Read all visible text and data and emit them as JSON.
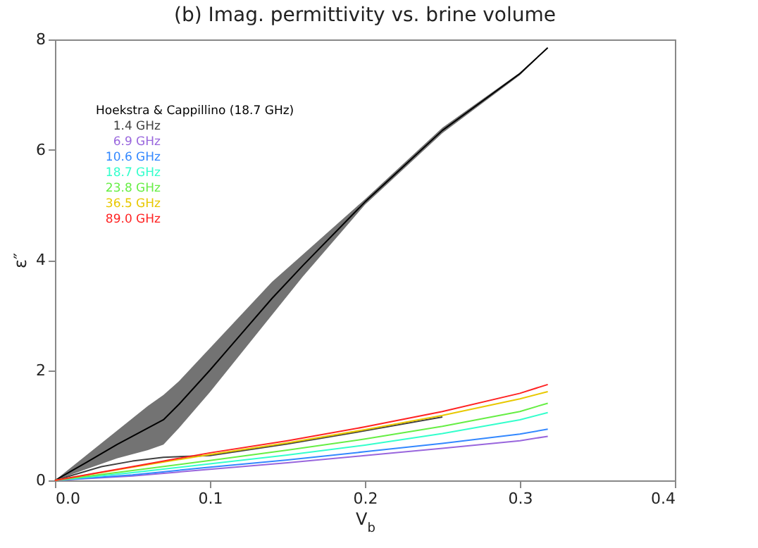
{
  "chart_data": {
    "type": "line",
    "title": "(b) Imag. permittivity vs. brine volume",
    "xlabel": "V$_{b}$",
    "ylabel": "ε″",
    "xlim": [
      0,
      0.4
    ],
    "xticks": [
      {
        "value": 0,
        "label": "0.0"
      },
      {
        "value": 0.1,
        "label": "0.1"
      },
      {
        "value": 0.2,
        "label": "0.2"
      },
      {
        "value": 0.3,
        "label": "0.3"
      },
      {
        "value": 0.4,
        "label": "0.4"
      }
    ],
    "ylim": [
      0,
      8
    ],
    "yticks": [
      0,
      2,
      4,
      6,
      8
    ],
    "grid": false,
    "marker": "none",
    "line_style": "solid",
    "series": [
      {
        "name": "Hoekstra & Cappillino (18.7 GHz)",
        "color": "#000000",
        "x": [
          0,
          0.02,
          0.04,
          0.06,
          0.07,
          0.08,
          0.1,
          0.12,
          0.14,
          0.16,
          0.2,
          0.25,
          0.3,
          0.318
        ],
        "values": [
          0,
          0.32,
          0.65,
          0.95,
          1.1,
          1.38,
          2.0,
          2.65,
          3.3,
          3.9,
          5.05,
          6.35,
          7.38,
          7.85
        ],
        "lower": [
          0,
          0.2,
          0.4,
          0.55,
          0.65,
          0.95,
          1.6,
          2.3,
          3.0,
          3.7,
          5.0,
          6.3,
          7.35,
          7.85
        ],
        "upper": [
          0,
          0.45,
          0.9,
          1.35,
          1.55,
          1.8,
          2.4,
          3.0,
          3.6,
          4.1,
          5.1,
          6.4,
          7.4,
          7.85
        ]
      },
      {
        "name": "1.4 GHz",
        "color": "#404040",
        "x": [
          0,
          0.03,
          0.05,
          0.07,
          0.1,
          0.15,
          0.2,
          0.25
        ],
        "values": [
          0,
          0.25,
          0.35,
          0.42,
          0.45,
          0.66,
          0.9,
          1.15
        ]
      },
      {
        "name": "6.9 GHz",
        "color": "#9966dd",
        "x": [
          0,
          0.05,
          0.1,
          0.15,
          0.2,
          0.25,
          0.3,
          0.318
        ],
        "values": [
          0,
          0.08,
          0.2,
          0.32,
          0.45,
          0.58,
          0.72,
          0.8
        ]
      },
      {
        "name": "10.6 GHz",
        "color": "#3388ff",
        "x": [
          0,
          0.05,
          0.1,
          0.15,
          0.2,
          0.25,
          0.3,
          0.318
        ],
        "values": [
          0,
          0.1,
          0.24,
          0.37,
          0.52,
          0.67,
          0.84,
          0.93
        ]
      },
      {
        "name": "18.7 GHz",
        "color": "#33ffcc",
        "x": [
          0,
          0.05,
          0.1,
          0.15,
          0.2,
          0.25,
          0.3,
          0.318
        ],
        "values": [
          0,
          0.14,
          0.3,
          0.46,
          0.64,
          0.85,
          1.1,
          1.23
        ]
      },
      {
        "name": "23.8 GHz",
        "color": "#66ee44",
        "x": [
          0,
          0.05,
          0.1,
          0.15,
          0.2,
          0.25,
          0.3,
          0.318
        ],
        "values": [
          0,
          0.18,
          0.36,
          0.55,
          0.75,
          0.98,
          1.25,
          1.4
        ]
      },
      {
        "name": "36.5 GHz",
        "color": "#e8c800",
        "x": [
          0,
          0.05,
          0.1,
          0.15,
          0.2,
          0.25,
          0.3,
          0.318
        ],
        "values": [
          0,
          0.24,
          0.47,
          0.68,
          0.92,
          1.18,
          1.48,
          1.61
        ]
      },
      {
        "name": "89.0 GHz",
        "color": "#ff2222",
        "x": [
          0,
          0.05,
          0.1,
          0.15,
          0.2,
          0.25,
          0.3,
          0.318
        ],
        "values": [
          0,
          0.25,
          0.5,
          0.72,
          0.97,
          1.25,
          1.58,
          1.74
        ]
      }
    ]
  }
}
